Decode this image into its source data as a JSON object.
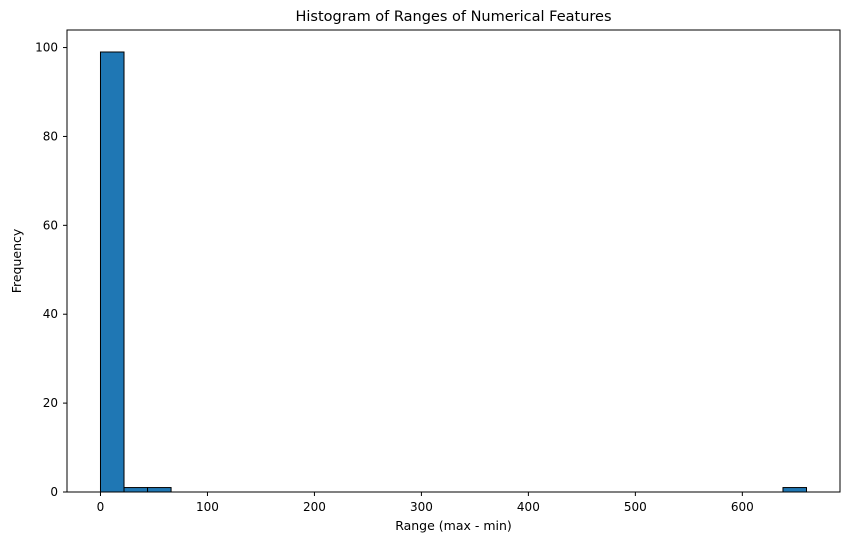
{
  "chart_data": {
    "type": "bar",
    "title": "Histogram of Ranges of Numerical Features",
    "xlabel": "Range (max - min)",
    "ylabel": "Frequency",
    "xlim": [
      -31.3,
      691.3
    ],
    "ylim": [
      0,
      103.95
    ],
    "xticks": [
      0,
      100,
      200,
      300,
      400,
      500,
      600
    ],
    "yticks": [
      0,
      20,
      40,
      60,
      80,
      100
    ],
    "bar_color": "#1f77b4",
    "edge_color": "#000000",
    "grid": false,
    "legend": "none",
    "bins": [
      {
        "x0": 0.0,
        "x1": 22.0,
        "count": 99
      },
      {
        "x0": 22.0,
        "x1": 44.0,
        "count": 1
      },
      {
        "x0": 44.0,
        "x1": 66.0,
        "count": 1
      },
      {
        "x0": 66.0,
        "x1": 88.0,
        "count": 0
      },
      {
        "x0": 88.0,
        "x1": 110.0,
        "count": 0
      },
      {
        "x0": 110.0,
        "x1": 132.0,
        "count": 0
      },
      {
        "x0": 132.0,
        "x1": 154.0,
        "count": 0
      },
      {
        "x0": 154.0,
        "x1": 176.0,
        "count": 0
      },
      {
        "x0": 176.0,
        "x1": 198.0,
        "count": 0
      },
      {
        "x0": 198.0,
        "x1": 220.0,
        "count": 0
      },
      {
        "x0": 220.0,
        "x1": 242.0,
        "count": 0
      },
      {
        "x0": 242.0,
        "x1": 264.0,
        "count": 0
      },
      {
        "x0": 264.0,
        "x1": 286.0,
        "count": 0
      },
      {
        "x0": 286.0,
        "x1": 308.0,
        "count": 0
      },
      {
        "x0": 308.0,
        "x1": 330.0,
        "count": 0
      },
      {
        "x0": 330.0,
        "x1": 352.0,
        "count": 0
      },
      {
        "x0": 352.0,
        "x1": 374.0,
        "count": 0
      },
      {
        "x0": 374.0,
        "x1": 396.0,
        "count": 0
      },
      {
        "x0": 396.0,
        "x1": 418.0,
        "count": 0
      },
      {
        "x0": 418.0,
        "x1": 440.0,
        "count": 0
      },
      {
        "x0": 440.0,
        "x1": 462.0,
        "count": 0
      },
      {
        "x0": 462.0,
        "x1": 484.0,
        "count": 0
      },
      {
        "x0": 484.0,
        "x1": 506.0,
        "count": 0
      },
      {
        "x0": 506.0,
        "x1": 528.0,
        "count": 0
      },
      {
        "x0": 528.0,
        "x1": 550.0,
        "count": 0
      },
      {
        "x0": 550.0,
        "x1": 572.0,
        "count": 0
      },
      {
        "x0": 572.0,
        "x1": 594.0,
        "count": 0
      },
      {
        "x0": 594.0,
        "x1": 616.0,
        "count": 0
      },
      {
        "x0": 616.0,
        "x1": 638.0,
        "count": 0
      },
      {
        "x0": 638.0,
        "x1": 660.0,
        "count": 1
      }
    ]
  }
}
